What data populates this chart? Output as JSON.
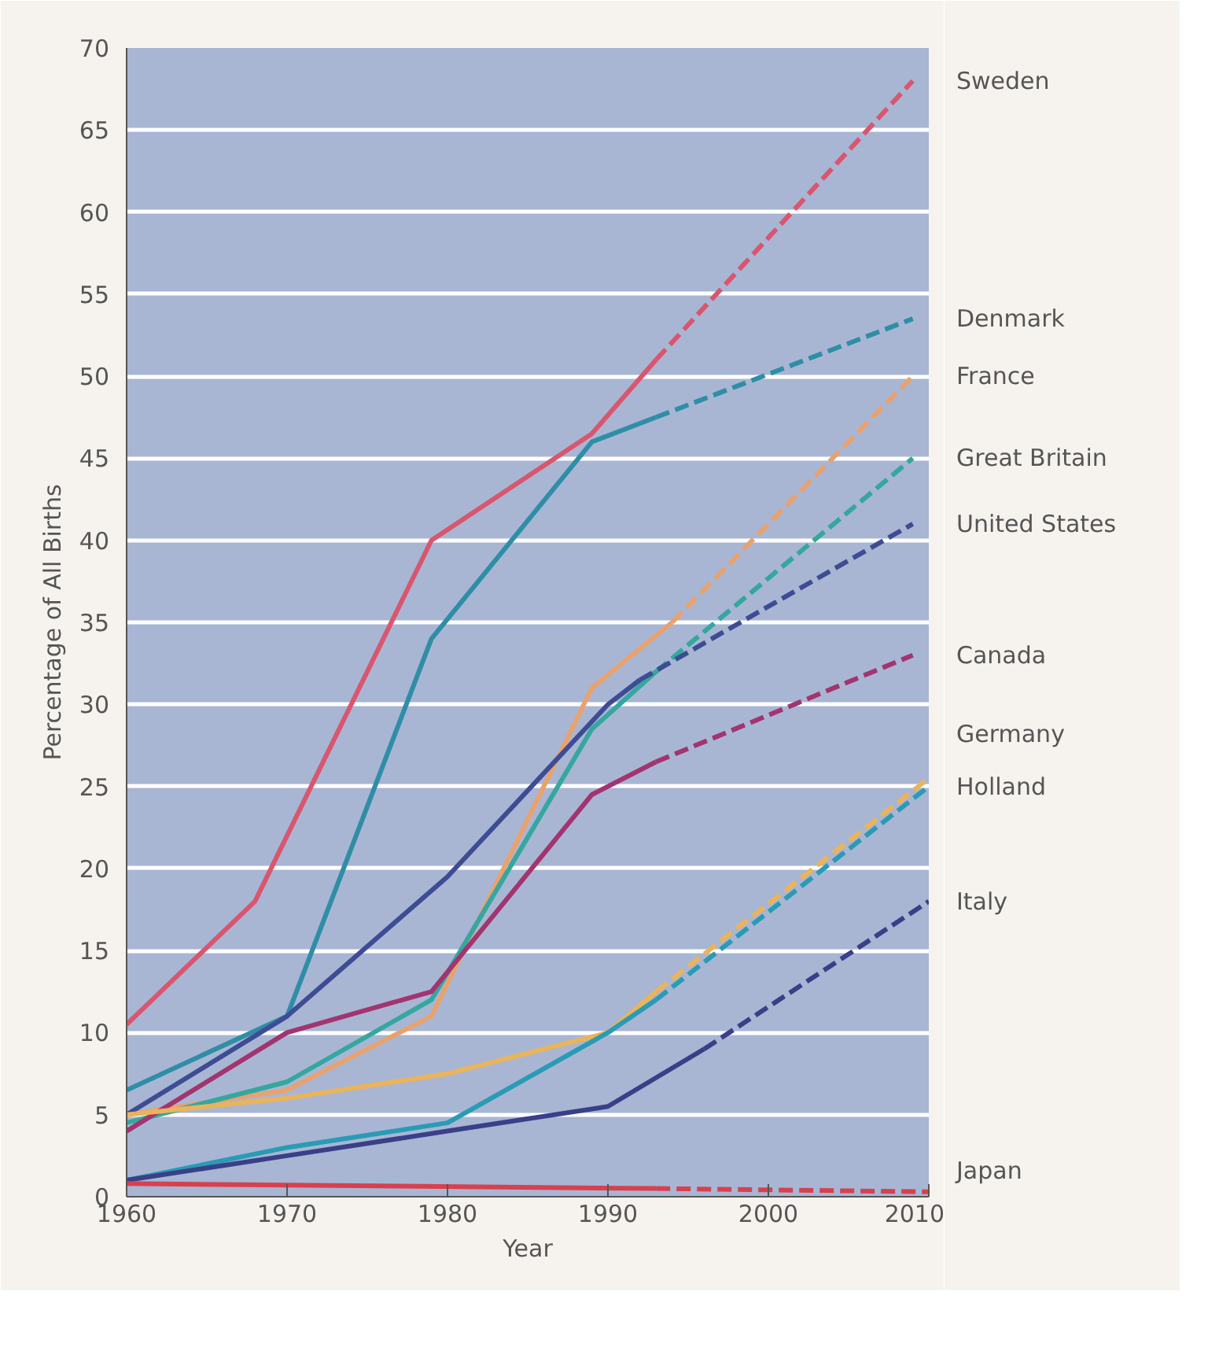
{
  "chart_data": {
    "type": "line",
    "xlabel": "Year",
    "ylabel": "Percentage of All Births",
    "xlim": [
      1960,
      2010
    ],
    "xticks": [
      1960,
      1970,
      1980,
      1990,
      2000,
      2010
    ],
    "ylim": [
      0,
      70
    ],
    "yticks": [
      0,
      5,
      10,
      15,
      20,
      25,
      30,
      35,
      40,
      45,
      50,
      55,
      60,
      65,
      70
    ],
    "grid": "y",
    "marker": "none",
    "line_style": "solid",
    "series": [
      {
        "color": "#d9566e",
        "x": [
          1960,
          1968,
          1979,
          1989,
          1993
        ],
        "values": [
          10.5,
          18,
          40,
          46.5,
          51
        ]
      },
      {
        "name": "Sweden",
        "color": "#d9566e",
        "line_style": "dashed",
        "x": [
          1993,
          2009
        ],
        "values": [
          51,
          68
        ]
      },
      {
        "color": "#2f8ea6",
        "x": [
          1960,
          1970,
          1979,
          1989,
          1993
        ],
        "values": [
          6.5,
          11,
          34,
          46,
          47.5
        ]
      },
      {
        "name": "Denmark",
        "color": "#2f8ea6",
        "line_style": "dashed",
        "x": [
          1993,
          2009
        ],
        "values": [
          47.5,
          53.5
        ]
      },
      {
        "color": "#e8a26e",
        "x": [
          1960,
          1970,
          1979,
          1989,
          1994
        ],
        "values": [
          5,
          6.5,
          11,
          31,
          35
        ]
      },
      {
        "name": "France",
        "color": "#e8a26e",
        "line_style": "dashed",
        "x": [
          1994,
          2009
        ],
        "values": [
          35,
          50
        ]
      },
      {
        "color": "#35a79e",
        "x": [
          1960,
          1970,
          1979,
          1989,
          1993
        ],
        "values": [
          4.5,
          7,
          12,
          28.5,
          32
        ]
      },
      {
        "name": "Great Britain",
        "color": "#35a79e",
        "line_style": "dashed",
        "x": [
          1993,
          2009
        ],
        "values": [
          32,
          45
        ]
      },
      {
        "color": "#3d4c93",
        "x": [
          1960,
          1970,
          1980,
          1990,
          1992
        ],
        "values": [
          5,
          11,
          19.5,
          30,
          31.5
        ]
      },
      {
        "name": "United States",
        "color": "#3d4c93",
        "line_style": "dashed",
        "x": [
          1992,
          2009
        ],
        "values": [
          31.5,
          41
        ]
      },
      {
        "color": "#a3346f",
        "x": [
          1960,
          1970,
          1979,
          1989,
          1993
        ],
        "values": [
          4,
          10,
          12.5,
          24.5,
          26.5
        ]
      },
      {
        "name": "Canada",
        "color": "#a3346f",
        "line_style": "dashed",
        "x": [
          1993,
          2009
        ],
        "values": [
          26.5,
          33
        ]
      },
      {
        "color": "#eab45a",
        "x": [
          1960,
          1970,
          1980,
          1990,
          1993
        ],
        "values": [
          5,
          6,
          7.5,
          10,
          12.5
        ]
      },
      {
        "name": "Germany",
        "color": "#eab45a",
        "line_style": "dashed",
        "x": [
          1993,
          2010
        ],
        "values": [
          12.5,
          25.5
        ]
      },
      {
        "color": "#2a9bb5",
        "x": [
          1960,
          1970,
          1980,
          1990,
          1993
        ],
        "values": [
          1,
          3,
          4.5,
          10,
          12
        ]
      },
      {
        "name": "Holland",
        "color": "#2a9bb5",
        "line_style": "dashed",
        "x": [
          1993,
          2010
        ],
        "values": [
          12,
          25
        ]
      },
      {
        "color": "#3a3f88",
        "x": [
          1960,
          1970,
          1980,
          1990,
          1996
        ],
        "values": [
          1,
          2.5,
          4,
          5.5,
          9
        ]
      },
      {
        "name": "Italy",
        "color": "#3a3f88",
        "line_style": "dashed",
        "x": [
          1996,
          2010
        ],
        "values": [
          9,
          18
        ]
      },
      {
        "color": "#d8404e",
        "x": [
          1960,
          1993
        ],
        "values": [
          0.8,
          0.5
        ]
      },
      {
        "name": "Japan",
        "color": "#d8404e",
        "line_style": "dashed",
        "x": [
          1993,
          2010
        ],
        "values": [
          0.5,
          0.3
        ]
      }
    ]
  }
}
